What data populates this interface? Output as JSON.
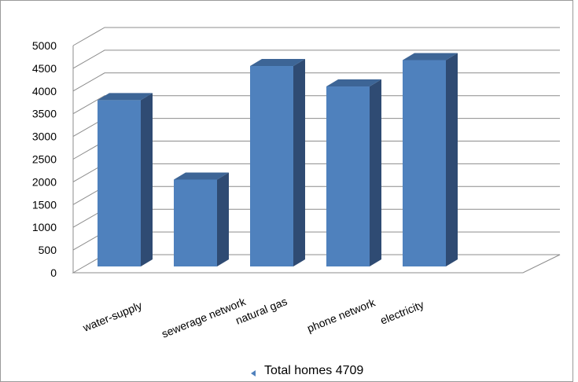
{
  "chart_data": {
    "type": "bar",
    "categories": [
      "water-supply",
      "sewerage network",
      "natural gas",
      "phone network",
      "electricity"
    ],
    "series": [
      {
        "name": "Total homes 4709",
        "values": [
          3800,
          2050,
          4550,
          4100,
          4680
        ]
      }
    ],
    "ylim": [
      0,
      5000
    ],
    "yticks": [
      0,
      500,
      1000,
      1500,
      2000,
      2500,
      3000,
      3500,
      4000,
      4500,
      5000
    ],
    "grid": true,
    "legend_position": "bottom",
    "colors": {
      "front": "#4f81bd",
      "side": "#2f4b73",
      "top": "#3d6596"
    }
  }
}
